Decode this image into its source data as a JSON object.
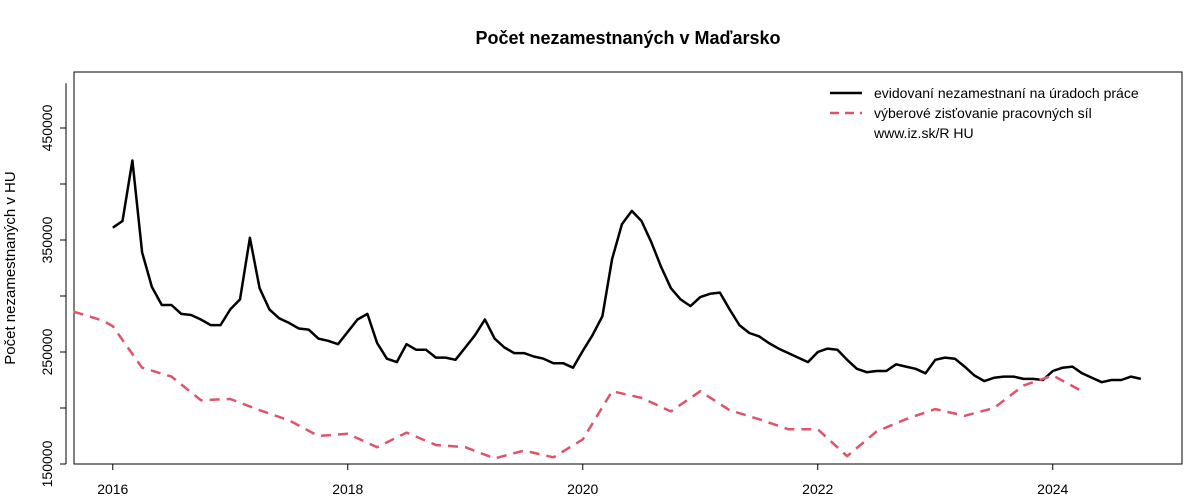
{
  "chart_data": {
    "type": "line",
    "title": "Počet nezamestnaných v Maďarsko",
    "ylabel": "Počet nezamestnaných v HU",
    "xlabel": "",
    "xlim": [
      2015.67,
      2025.1
    ],
    "ylim": [
      150000,
      500000
    ],
    "xticks": [
      2016,
      2018,
      2020,
      2022,
      2024
    ],
    "yticks": [
      150000,
      250000,
      350000,
      450000
    ],
    "ytick_labels": [
      "150000",
      "250000",
      "350000",
      "450000"
    ],
    "xtick_labels": [
      "2016",
      "2018",
      "2020",
      "2022",
      "2024"
    ],
    "grid": false,
    "legend_position": "top-right",
    "legend_note": "www.iz.sk/R HU",
    "colors": {
      "registered": "#000000",
      "survey": "#DF536B"
    },
    "series": [
      {
        "name": "evidovaní nezamestnaní na úradoch práce",
        "style": "solid",
        "x": [
          2016.0,
          2016.083,
          2016.167,
          2016.25,
          2016.333,
          2016.417,
          2016.5,
          2016.583,
          2016.667,
          2016.75,
          2016.833,
          2016.917,
          2017.0,
          2017.083,
          2017.167,
          2017.25,
          2017.333,
          2017.417,
          2017.5,
          2017.583,
          2017.667,
          2017.75,
          2017.833,
          2017.917,
          2018.0,
          2018.083,
          2018.167,
          2018.25,
          2018.333,
          2018.417,
          2018.5,
          2018.583,
          2018.667,
          2018.75,
          2018.833,
          2018.917,
          2019.0,
          2019.083,
          2019.167,
          2019.25,
          2019.333,
          2019.417,
          2019.5,
          2019.583,
          2019.667,
          2019.75,
          2019.833,
          2019.917,
          2020.0,
          2020.083,
          2020.167,
          2020.25,
          2020.333,
          2020.417,
          2020.5,
          2020.583,
          2020.667,
          2020.75,
          2020.833,
          2020.917,
          2021.0,
          2021.083,
          2021.167,
          2021.25,
          2021.333,
          2021.417,
          2021.5,
          2021.583,
          2021.667,
          2021.75,
          2021.833,
          2021.917,
          2022.0,
          2022.083,
          2022.167,
          2022.25,
          2022.333,
          2022.417,
          2022.5,
          2022.583,
          2022.667,
          2022.75,
          2022.833,
          2022.917,
          2023.0,
          2023.083,
          2023.167,
          2023.25,
          2023.333,
          2023.417,
          2023.5,
          2023.583,
          2023.667,
          2023.75,
          2023.833,
          2023.917,
          2024.0,
          2024.083,
          2024.167,
          2024.25,
          2024.333,
          2024.417,
          2024.5,
          2024.583,
          2024.667,
          2024.75
        ],
        "values": [
          361000,
          367000,
          421000,
          339000,
          308000,
          292000,
          292000,
          284000,
          283000,
          279000,
          274000,
          274000,
          288000,
          297000,
          352000,
          307000,
          288000,
          280000,
          276000,
          271000,
          270000,
          262000,
          260000,
          257000,
          268000,
          279000,
          284000,
          258000,
          244000,
          241000,
          257000,
          252000,
          252000,
          245000,
          245000,
          243000,
          254000,
          265000,
          279000,
          262000,
          254000,
          249000,
          249000,
          246000,
          244000,
          240000,
          240000,
          236000,
          251000,
          265000,
          282000,
          333000,
          364000,
          376000,
          367000,
          348000,
          326000,
          307000,
          297000,
          291000,
          299000,
          302000,
          303000,
          288000,
          274000,
          267000,
          264000,
          258000,
          253000,
          249000,
          245000,
          241000,
          250000,
          253000,
          252000,
          243000,
          235000,
          232000,
          233000,
          233000,
          239000,
          237000,
          235000,
          231000,
          243000,
          245000,
          244000,
          237000,
          229000,
          224000,
          227000,
          228000,
          228000,
          226000,
          226000,
          225000,
          233000,
          236000,
          237000,
          231000,
          227000,
          223000,
          225000,
          225000,
          228000,
          226000
        ]
      },
      {
        "name": "výberové zisťovanie pracovných síl",
        "style": "dashed",
        "x": [
          2015.667,
          2015.917,
          2016.0,
          2016.25,
          2016.5,
          2016.75,
          2017.0,
          2017.25,
          2017.5,
          2017.75,
          2018.0,
          2018.25,
          2018.5,
          2018.75,
          2019.0,
          2019.25,
          2019.5,
          2019.75,
          2020.0,
          2020.25,
          2020.5,
          2020.75,
          2021.0,
          2021.25,
          2021.5,
          2021.75,
          2022.0,
          2022.25,
          2022.5,
          2022.75,
          2023.0,
          2023.25,
          2023.5,
          2023.75,
          2024.0,
          2024.25
        ],
        "values": [
          286000,
          278000,
          273000,
          236000,
          228000,
          207000,
          208000,
          198000,
          189000,
          175000,
          177000,
          165000,
          178000,
          167000,
          165000,
          155000,
          162000,
          156000,
          172000,
          215000,
          209000,
          197000,
          215000,
          198000,
          190000,
          181000,
          181000,
          157000,
          179000,
          190000,
          199000,
          193000,
          200000,
          220000,
          229000,
          215000
        ]
      }
    ]
  }
}
